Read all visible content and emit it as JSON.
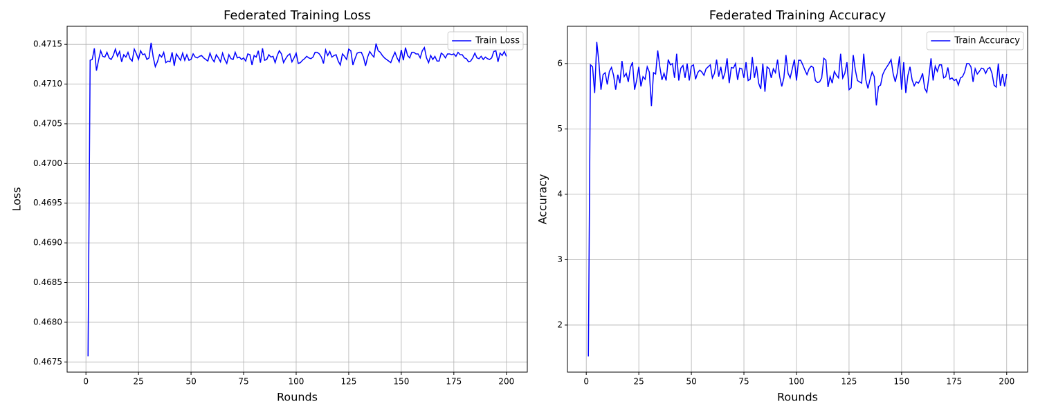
{
  "chart_data": [
    {
      "type": "line",
      "title": "Federated Training Loss",
      "xlabel": "Rounds",
      "ylabel": "Loss",
      "xlim": [
        -8.95,
        209.95
      ],
      "xticks": [
        0,
        25,
        50,
        75,
        100,
        125,
        150,
        175,
        200
      ],
      "ylim": [
        0.467372,
        0.471728
      ],
      "yticks": [
        0.4675,
        {
          "value": 0.468,
          "label": "0.4680"
        },
        0.4685,
        {
          "value": 0.469,
          "label": "0.4690"
        },
        0.4695,
        {
          "value": 0.47,
          "label": "0.4700"
        },
        0.4705,
        {
          "value": 0.471,
          "label": "0.4710"
        },
        0.4715
      ],
      "grid": true,
      "legend": "upper right",
      "x": [
        1,
        2,
        3,
        4,
        5,
        6,
        7,
        8,
        9,
        10,
        11,
        12,
        13,
        14,
        15,
        16,
        17,
        18,
        19,
        20,
        21,
        22,
        23,
        24,
        25,
        26,
        27,
        28,
        29,
        30,
        31,
        32,
        33,
        34,
        35,
        36,
        37,
        38,
        39,
        40,
        41,
        42,
        43,
        44,
        45,
        46,
        47,
        48,
        49,
        50,
        51,
        52,
        53,
        54,
        55,
        56,
        57,
        58,
        59,
        60,
        61,
        62,
        63,
        64,
        65,
        66,
        67,
        68,
        69,
        70,
        71,
        72,
        73,
        74,
        75,
        76,
        77,
        78,
        79,
        80,
        81,
        82,
        83,
        84,
        85,
        86,
        87,
        88,
        89,
        90,
        91,
        92,
        93,
        94,
        95,
        96,
        97,
        98,
        99,
        100,
        101,
        102,
        103,
        104,
        105,
        106,
        107,
        108,
        109,
        110,
        111,
        112,
        113,
        114,
        115,
        116,
        117,
        118,
        119,
        120,
        121,
        122,
        123,
        124,
        125,
        126,
        127,
        128,
        129,
        130,
        131,
        132,
        133,
        134,
        135,
        136,
        137,
        138,
        139,
        140,
        141,
        142,
        143,
        144,
        145,
        146,
        147,
        148,
        149,
        150,
        151,
        152,
        153,
        154,
        155,
        156,
        157,
        158,
        159,
        160,
        161,
        162,
        163,
        164,
        165,
        166,
        167,
        168,
        169,
        170,
        171,
        172,
        173,
        174,
        175,
        176,
        177,
        178,
        179,
        180,
        181,
        182,
        183,
        184,
        185,
        186,
        187,
        188,
        189,
        190,
        191,
        192,
        193,
        194,
        195,
        196,
        197,
        198,
        199,
        200
      ],
      "series": [
        {
          "name": "Train Loss",
          "color": "#0000ff",
          "values": [
            0.46757,
            0.4713,
            0.47131,
            0.47145,
            0.47117,
            0.4713,
            0.47142,
            0.47135,
            0.47134,
            0.4714,
            0.47133,
            0.47131,
            0.47136,
            0.47144,
            0.47135,
            0.47141,
            0.47128,
            0.47137,
            0.47134,
            0.4714,
            0.47132,
            0.47129,
            0.47144,
            0.47138,
            0.47131,
            0.47142,
            0.47137,
            0.47138,
            0.47131,
            0.47133,
            0.47152,
            0.47134,
            0.47122,
            0.47128,
            0.47137,
            0.47134,
            0.4714,
            0.47127,
            0.47129,
            0.47128,
            0.4714,
            0.47123,
            0.47138,
            0.47134,
            0.4713,
            0.47139,
            0.4713,
            0.47137,
            0.4713,
            0.47131,
            0.47138,
            0.47134,
            0.47133,
            0.47135,
            0.47136,
            0.47133,
            0.47131,
            0.47129,
            0.47139,
            0.47132,
            0.47128,
            0.47137,
            0.47133,
            0.47128,
            0.47139,
            0.47131,
            0.47126,
            0.47137,
            0.47132,
            0.47131,
            0.4714,
            0.47133,
            0.47134,
            0.47131,
            0.47133,
            0.47129,
            0.47138,
            0.47137,
            0.47124,
            0.47136,
            0.47134,
            0.47142,
            0.47127,
            0.47145,
            0.4713,
            0.47131,
            0.47137,
            0.47134,
            0.47135,
            0.47127,
            0.47136,
            0.47142,
            0.47138,
            0.47127,
            0.47132,
            0.47136,
            0.47138,
            0.47128,
            0.47133,
            0.47139,
            0.47126,
            0.47127,
            0.4713,
            0.47132,
            0.47135,
            0.47133,
            0.47132,
            0.47134,
            0.4714,
            0.4714,
            0.47138,
            0.47134,
            0.47126,
            0.47143,
            0.47136,
            0.47141,
            0.47134,
            0.47136,
            0.47137,
            0.47129,
            0.47124,
            0.47138,
            0.47135,
            0.47131,
            0.47144,
            0.47142,
            0.47124,
            0.47132,
            0.47139,
            0.4714,
            0.4714,
            0.47134,
            0.47123,
            0.47134,
            0.47141,
            0.47137,
            0.47134,
            0.47151,
            0.47142,
            0.4714,
            0.47136,
            0.47133,
            0.47131,
            0.47129,
            0.47127,
            0.47134,
            0.4714,
            0.47133,
            0.47128,
            0.47143,
            0.4713,
            0.47146,
            0.47136,
            0.47133,
            0.4714,
            0.4714,
            0.47138,
            0.47138,
            0.47133,
            0.47142,
            0.47146,
            0.47133,
            0.47127,
            0.47136,
            0.47131,
            0.47135,
            0.47129,
            0.47129,
            0.47139,
            0.47137,
            0.47133,
            0.47138,
            0.47138,
            0.47137,
            0.47138,
            0.47135,
            0.4714,
            0.47137,
            0.47137,
            0.47133,
            0.47132,
            0.47128,
            0.47129,
            0.47133,
            0.47139,
            0.47133,
            0.47132,
            0.47135,
            0.47131,
            0.47134,
            0.47132,
            0.47131,
            0.47133,
            0.47141,
            0.47142,
            0.47128,
            0.47139,
            0.47136,
            0.47141,
            0.47135
          ]
        }
      ]
    },
    {
      "type": "line",
      "title": "Federated Training Accuracy",
      "xlabel": "Rounds",
      "ylabel": "Accuracy",
      "xlim": [
        -8.95,
        209.95
      ],
      "xticks": [
        0,
        25,
        50,
        75,
        100,
        125,
        150,
        175,
        200
      ],
      "ylim": [
        1.28,
        6.57
      ],
      "yticks": [
        2,
        3,
        4,
        5,
        6
      ],
      "grid": true,
      "legend": "upper right",
      "x": [
        1,
        2,
        3,
        4,
        5,
        6,
        7,
        8,
        9,
        10,
        11,
        12,
        13,
        14,
        15,
        16,
        17,
        18,
        19,
        20,
        21,
        22,
        23,
        24,
        25,
        26,
        27,
        28,
        29,
        30,
        31,
        32,
        33,
        34,
        35,
        36,
        37,
        38,
        39,
        40,
        41,
        42,
        43,
        44,
        45,
        46,
        47,
        48,
        49,
        50,
        51,
        52,
        53,
        54,
        55,
        56,
        57,
        58,
        59,
        60,
        61,
        62,
        63,
        64,
        65,
        66,
        67,
        68,
        69,
        70,
        71,
        72,
        73,
        74,
        75,
        76,
        77,
        78,
        79,
        80,
        81,
        82,
        83,
        84,
        85,
        86,
        87,
        88,
        89,
        90,
        91,
        92,
        93,
        94,
        95,
        96,
        97,
        98,
        99,
        100,
        101,
        102,
        103,
        104,
        105,
        106,
        107,
        108,
        109,
        110,
        111,
        112,
        113,
        114,
        115,
        116,
        117,
        118,
        119,
        120,
        121,
        122,
        123,
        124,
        125,
        126,
        127,
        128,
        129,
        130,
        131,
        132,
        133,
        134,
        135,
        136,
        137,
        138,
        139,
        140,
        141,
        142,
        143,
        144,
        145,
        146,
        147,
        148,
        149,
        150,
        151,
        152,
        153,
        154,
        155,
        156,
        157,
        158,
        159,
        160,
        161,
        162,
        163,
        164,
        165,
        166,
        167,
        168,
        169,
        170,
        171,
        172,
        173,
        174,
        175,
        176,
        177,
        178,
        179,
        180,
        181,
        182,
        183,
        184,
        185,
        186,
        187,
        188,
        189,
        190,
        191,
        192,
        193,
        194,
        195,
        196,
        197,
        198,
        199,
        200
      ],
      "series": [
        {
          "name": "Train Accuracy",
          "color": "#0000ff",
          "values": [
            1.52,
            5.98,
            5.95,
            5.55,
            6.33,
            6.02,
            5.6,
            5.83,
            5.86,
            5.68,
            5.88,
            5.94,
            5.82,
            5.6,
            5.83,
            5.7,
            6.04,
            5.8,
            5.85,
            5.72,
            5.94,
            6.02,
            5.6,
            5.75,
            5.95,
            5.65,
            5.8,
            5.76,
            5.95,
            5.87,
            5.35,
            5.86,
            5.84,
            6.2,
            5.95,
            5.75,
            5.85,
            5.74,
            6.06,
            5.98,
            6.0,
            5.78,
            6.15,
            5.74,
            5.93,
            5.97,
            5.78,
            6.0,
            5.74,
            5.96,
            5.98,
            5.76,
            5.86,
            5.9,
            5.87,
            5.82,
            5.92,
            5.95,
            5.98,
            5.78,
            5.85,
            6.06,
            5.8,
            5.95,
            5.76,
            5.86,
            6.08,
            5.7,
            5.94,
            5.93,
            6.0,
            5.75,
            5.93,
            5.92,
            5.78,
            6.02,
            5.74,
            5.76,
            6.1,
            5.78,
            5.96,
            5.7,
            5.61,
            6.0,
            5.57,
            5.95,
            5.92,
            5.78,
            5.92,
            5.86,
            6.06,
            5.8,
            5.65,
            5.78,
            6.13,
            5.85,
            5.78,
            5.92,
            6.06,
            5.74,
            6.05,
            6.05,
            5.98,
            5.9,
            5.83,
            5.92,
            5.96,
            5.94,
            5.74,
            5.71,
            5.72,
            5.78,
            6.08,
            6.05,
            5.64,
            5.8,
            5.7,
            5.88,
            5.82,
            5.78,
            6.15,
            5.78,
            5.85,
            6.02,
            5.6,
            5.63,
            6.13,
            5.9,
            5.74,
            5.72,
            5.7,
            6.15,
            5.75,
            5.62,
            5.76,
            5.87,
            5.8,
            5.36,
            5.65,
            5.67,
            5.83,
            5.9,
            5.95,
            6.0,
            6.06,
            5.84,
            5.72,
            5.86,
            6.11,
            5.6,
            6.02,
            5.55,
            5.82,
            5.95,
            5.75,
            5.66,
            5.72,
            5.7,
            5.76,
            5.85,
            5.62,
            5.56,
            5.8,
            6.08,
            5.74,
            5.96,
            5.88,
            5.98,
            5.98,
            5.78,
            5.8,
            5.94,
            5.76,
            5.78,
            5.74,
            5.76,
            5.67,
            5.78,
            5.8,
            5.87,
            6.0,
            6.0,
            5.95,
            5.72,
            5.92,
            5.84,
            5.88,
            5.93,
            5.92,
            5.85,
            5.92,
            5.94,
            5.85,
            5.67,
            5.64,
            6.0,
            5.66,
            5.84,
            5.65,
            5.84
          ]
        }
      ]
    }
  ]
}
